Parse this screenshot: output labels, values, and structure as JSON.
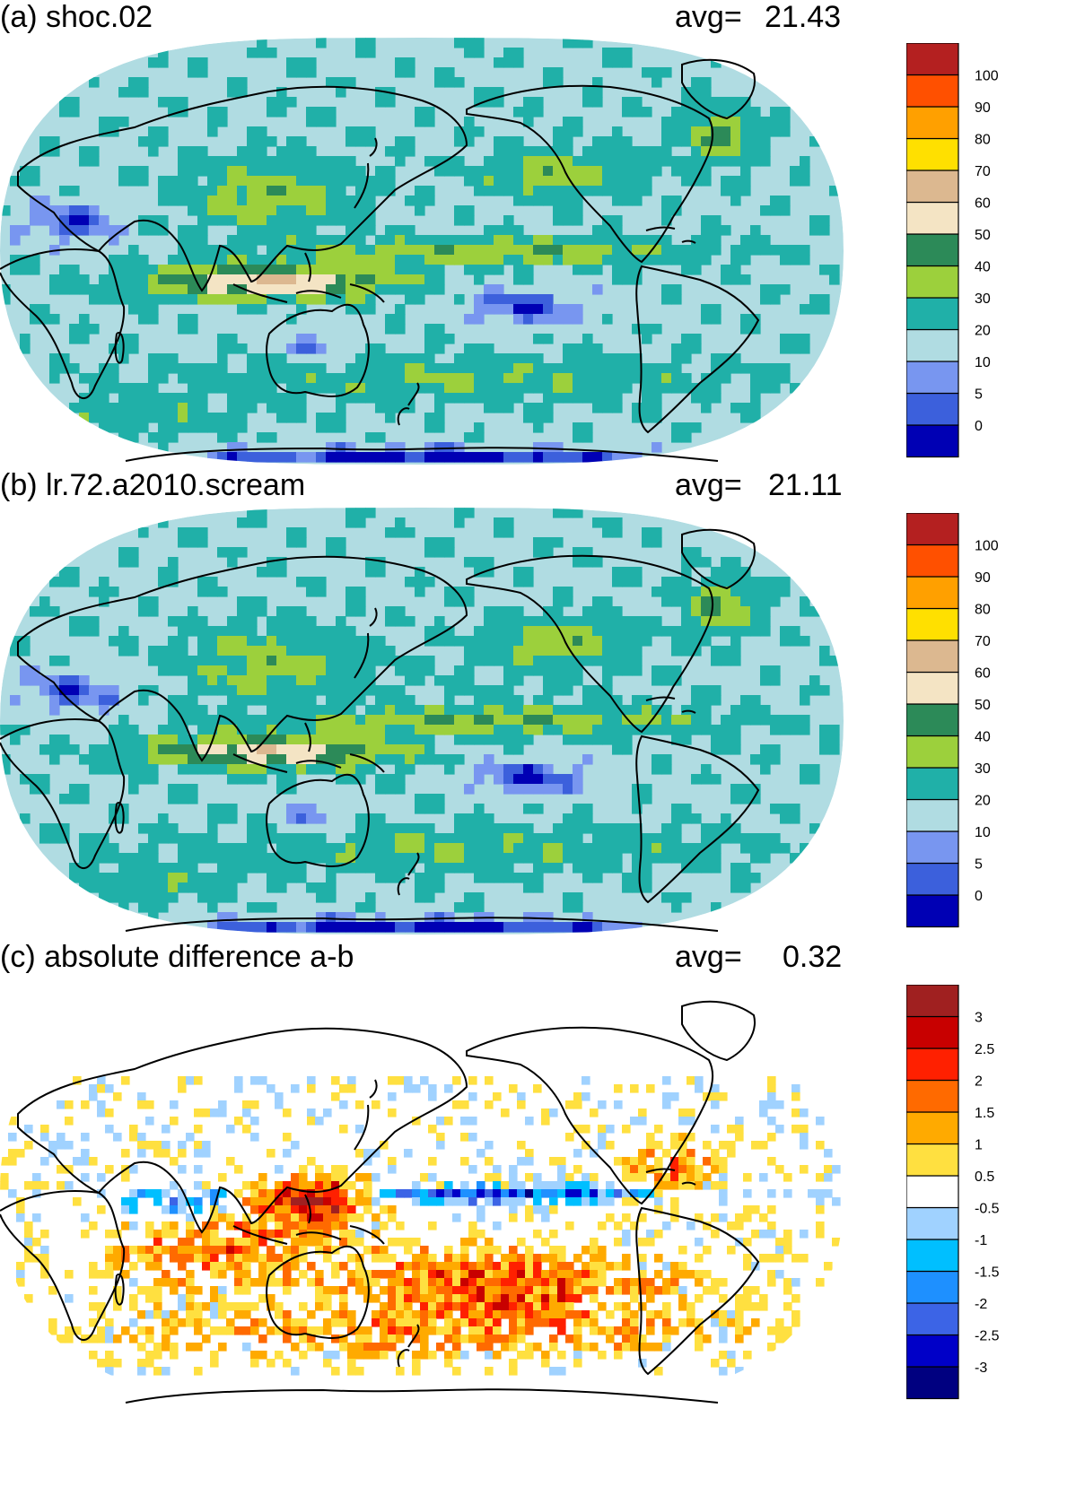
{
  "panels": [
    {
      "title": "(a) shoc.02",
      "avg_label": "avg=",
      "avg_value": "21.43",
      "colorbar": {
        "colors": [
          "#0000b4",
          "#3c60dc",
          "#7896f0",
          "#b0dce2",
          "#20b0a8",
          "#9cd03c",
          "#2c8a58",
          "#f4e4c4",
          "#dcb890",
          "#ffe000",
          "#ffa000",
          "#ff5000",
          "#b42020"
        ],
        "labels": [
          "0",
          "5",
          "10",
          "20",
          "30",
          "40",
          "50",
          "60",
          "70",
          "80",
          "90",
          "100"
        ]
      }
    },
    {
      "title": "(b) lr.72.a2010.scream",
      "avg_label": "avg=",
      "avg_value": "21.11",
      "colorbar": {
        "colors": [
          "#0000b4",
          "#3c60dc",
          "#7896f0",
          "#b0dce2",
          "#20b0a8",
          "#9cd03c",
          "#2c8a58",
          "#f4e4c4",
          "#dcb890",
          "#ffe000",
          "#ffa000",
          "#ff5000",
          "#b42020"
        ],
        "labels": [
          "0",
          "5",
          "10",
          "20",
          "30",
          "40",
          "50",
          "60",
          "70",
          "80",
          "90",
          "100"
        ]
      }
    },
    {
      "title": "(c) absolute difference a-b",
      "avg_label": "avg=",
      "avg_value": "0.32",
      "colorbar": {
        "colors": [
          "#000080",
          "#0000c8",
          "#3c64e6",
          "#1e90ff",
          "#00bfff",
          "#a0d2ff",
          "#ffffff",
          "#ffe040",
          "#ffaa00",
          "#ff6a00",
          "#ff2000",
          "#c80000",
          "#a02020"
        ],
        "labels": [
          "-3",
          "-2.5",
          "-2",
          "-1.5",
          "-1",
          "-0.5",
          "0.5",
          "1",
          "1.5",
          "2",
          "2.5",
          "3"
        ]
      }
    }
  ],
  "colors": {
    "ocean_base_ab": "#b0dce2",
    "diff_base": "#ffffff",
    "coastline": "#000000"
  }
}
